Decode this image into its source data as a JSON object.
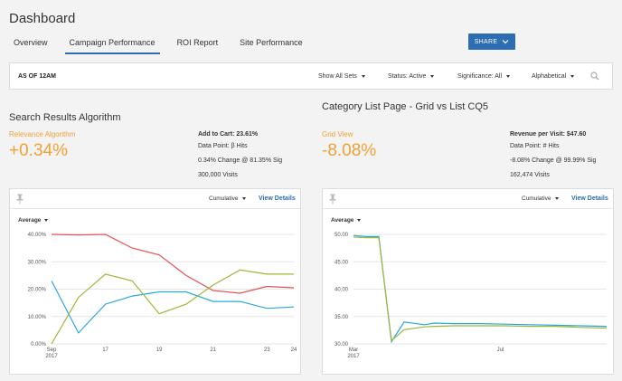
{
  "header": {
    "title": "Dashboard"
  },
  "tabs": [
    {
      "label": "Overview"
    },
    {
      "label": "Campaign Performance"
    },
    {
      "label": "ROI Report"
    },
    {
      "label": "Site Performance"
    }
  ],
  "share": {
    "label": "SHARE"
  },
  "filters": {
    "as_of": "AS OF 12AM",
    "show_all_sets": "Show All Sets",
    "status": "Status: Active",
    "significance": "Significance: All",
    "sort": "Alphabetical"
  },
  "left_panel": {
    "title": "Search Results Algorithm",
    "metric_label": "Relevance Algorithm",
    "metric_value": "+0.34%",
    "stats": {
      "heading": "Add to Cart: 23.61%",
      "data_point": "Data Point: β Hits",
      "change": "0.34% Change @ 81.35% Sig",
      "visits": "300,000 Visits"
    },
    "chart_controls": {
      "cumulative": "Cumulative",
      "view_details": "View Details",
      "average": "Average"
    }
  },
  "right_panel": {
    "title": "Category List Page - Grid vs List CQ5",
    "metric_label": "Grid View",
    "metric_value": "-8.08%",
    "stats": {
      "heading": "Revenue per Visit: $47.60",
      "data_point": "Data Point: # Hits",
      "change": "-8.08% Change @ 99.99% Sig",
      "visits": "162,474 Visits"
    },
    "chart_controls": {
      "cumulative": "Cumulative",
      "view_details": "View Details",
      "average": "Average"
    }
  },
  "colors": {
    "accent": "#2d6db1",
    "metric": "#f0a134",
    "red": "#e8514f",
    "blue": "#2aa8dd",
    "green": "#9bb83b"
  },
  "icons": {
    "pin": "pin-icon",
    "search": "search-icon",
    "chevron": "chevron-down-icon"
  },
  "chart_data": [
    {
      "type": "line",
      "x": [
        15,
        16,
        17,
        18,
        19,
        20,
        21,
        22,
        23,
        24
      ],
      "x_ticks": [
        15,
        17,
        19,
        21,
        23,
        24
      ],
      "x_tick_labels": [
        "Sep",
        "17",
        "19",
        "21",
        "23",
        "24"
      ],
      "x_sub_label": "2017",
      "ylim": [
        0,
        40
      ],
      "y_ticks": [
        0,
        10,
        20,
        30,
        40
      ],
      "y_tick_labels": [
        "0.00%",
        "10.00%",
        "20.00%",
        "30.00%",
        "40.00%"
      ],
      "grid": true,
      "series": [
        {
          "color": "#e8514f",
          "values": [
            40.0,
            39.8,
            40.0,
            35.0,
            32.5,
            25.0,
            19.5,
            18.5,
            21.0,
            20.5
          ]
        },
        {
          "color": "#2aa8dd",
          "values": [
            23.0,
            4.0,
            14.5,
            17.5,
            19.0,
            19.0,
            15.5,
            15.5,
            13.0,
            13.5
          ]
        },
        {
          "color": "#9bb83b",
          "values": [
            0.0,
            17.0,
            25.5,
            23.0,
            11.0,
            14.5,
            21.5,
            27.0,
            25.5,
            25.5
          ]
        }
      ]
    },
    {
      "type": "line",
      "x": [
        0,
        0.05,
        0.1,
        0.15,
        0.2,
        0.28,
        0.32,
        0.4,
        0.5,
        0.6,
        0.7,
        0.8,
        0.9,
        1.0
      ],
      "x_tick_labels": [
        "Mar",
        "Jul"
      ],
      "x_sub_label": "2017",
      "ylim": [
        30,
        50
      ],
      "y_ticks": [
        30,
        35,
        40,
        45,
        50
      ],
      "y_tick_labels": [
        "30.00",
        "35.00",
        "40.00",
        "45.00",
        "50.00"
      ],
      "grid": true,
      "series": [
        {
          "color": "#2aa8dd",
          "values": [
            49.8,
            49.6,
            49.6,
            30.4,
            34.0,
            33.5,
            33.8,
            33.7,
            33.7,
            33.6,
            33.5,
            33.4,
            33.3,
            33.2
          ]
        },
        {
          "color": "#9bb83b",
          "values": [
            49.5,
            49.4,
            49.4,
            30.6,
            32.6,
            33.1,
            33.2,
            33.3,
            33.3,
            33.3,
            33.2,
            33.2,
            33.0,
            32.9
          ]
        }
      ]
    }
  ]
}
